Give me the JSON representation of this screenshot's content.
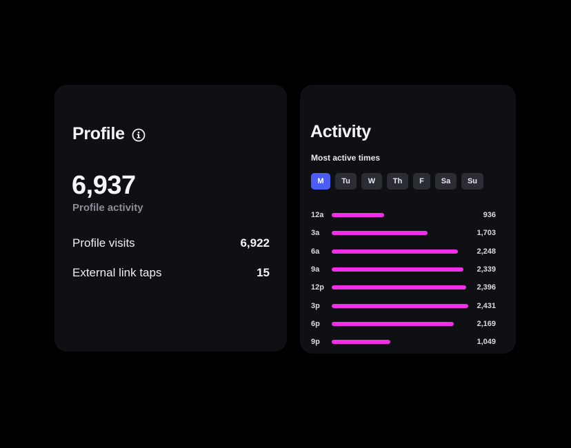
{
  "profile": {
    "title": "Profile",
    "info_icon": "info-circle-icon",
    "total": "6,937",
    "total_label": "Profile activity",
    "stats": [
      {
        "label": "Profile visits",
        "value": "6,922"
      },
      {
        "label": "External link taps",
        "value": "15"
      }
    ]
  },
  "activity": {
    "title": "Activity",
    "subtitle": "Most active times",
    "days": [
      {
        "label": "M",
        "active": true
      },
      {
        "label": "Tu",
        "active": false
      },
      {
        "label": "W",
        "active": false
      },
      {
        "label": "Th",
        "active": false
      },
      {
        "label": "F",
        "active": false
      },
      {
        "label": "Sa",
        "active": false
      },
      {
        "label": "Su",
        "active": false
      }
    ],
    "hours": [
      {
        "label": "12a",
        "value": 936,
        "display": "936"
      },
      {
        "label": "3a",
        "value": 1703,
        "display": "1,703"
      },
      {
        "label": "6a",
        "value": 2248,
        "display": "2,248"
      },
      {
        "label": "9a",
        "value": 2339,
        "display": "2,339"
      },
      {
        "label": "12p",
        "value": 2396,
        "display": "2,396"
      },
      {
        "label": "3p",
        "value": 2431,
        "display": "2,431"
      },
      {
        "label": "6p",
        "value": 2169,
        "display": "2,169"
      },
      {
        "label": "9p",
        "value": 1049,
        "display": "1,049"
      }
    ],
    "max_value": 2431
  },
  "colors": {
    "background": "#000000",
    "card": "#0e1014",
    "accent_day": "#4a5ef5",
    "bar": "#f22ee8",
    "muted_text": "#8b8e95",
    "day_chip": "#2a2d33"
  }
}
